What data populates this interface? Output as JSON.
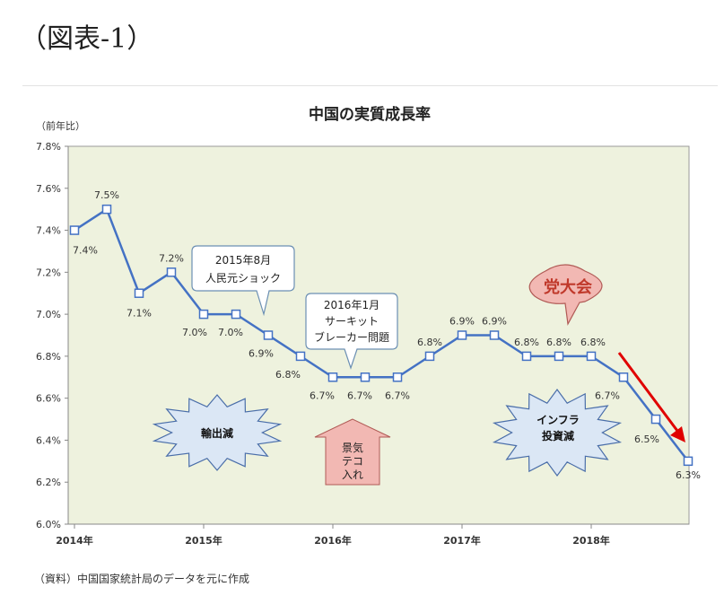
{
  "page_label": "（図表-1）",
  "source_note": "（資料）中国国家統計局のデータを元に作成",
  "chart_data": {
    "type": "line",
    "title": "中国の実質成長率",
    "ylabel": "（前年比）",
    "ylim": [
      6.0,
      7.8
    ],
    "ytick_labels": [
      "6.0%",
      "6.2%",
      "6.4%",
      "6.6%",
      "6.8%",
      "7.0%",
      "7.2%",
      "7.4%",
      "7.6%",
      "7.8%"
    ],
    "xtick_labels": [
      "2014年",
      "2015年",
      "2016年",
      "2017年",
      "2018年"
    ],
    "grid": false,
    "colors": {
      "plot_bg": "#eef2de",
      "line": "#4472c4",
      "marker_face": "#ffffff",
      "arrow": "#e00000"
    },
    "series": [
      {
        "values": [
          7.4,
          7.5,
          7.1,
          7.2,
          7.0,
          7.0,
          6.9,
          6.8,
          6.7,
          6.7,
          6.7,
          6.8,
          6.9,
          6.9,
          6.8,
          6.8,
          6.8,
          6.7,
          6.5,
          6.3
        ]
      }
    ],
    "data_labels": [
      "7.4%",
      "7.5%",
      "7.1%",
      "7.2%",
      "7.0%",
      "7.0%",
      "6.9%",
      "6.8%",
      "6.7%",
      "6.7%",
      "6.7%",
      "6.8%",
      "6.9%",
      "6.9%",
      "6.8%",
      "6.8%",
      "6.8%",
      "6.7%",
      "6.5%",
      "6.3%"
    ],
    "annotations": {
      "callout_2015": [
        "2015年8月",
        "人民元ショック"
      ],
      "callout_2016": [
        "2016年1月",
        "サーキット",
        "ブレーカー問題"
      ],
      "party_congress": "党大会",
      "export_decline": "輸出減",
      "infra_decline": [
        "インフラ",
        "投資減"
      ],
      "stimulus": [
        "景気",
        "テコ",
        "入れ"
      ]
    }
  }
}
